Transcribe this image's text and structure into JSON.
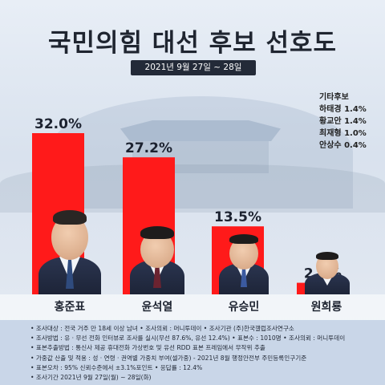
{
  "header": {
    "title": "국민의힘 대선 후보 선호도",
    "date_range": "2021년 9월 27일 ~ 28일"
  },
  "colors": {
    "bar_red": "#ff1a1a",
    "date_bar_bg": "#232a38",
    "notes_bg": "#c9d6e8"
  },
  "others_box": {
    "title": "기타후보",
    "items": [
      "하태경 1.4%",
      "황교안 1.4%",
      "최재형 1.0%",
      "안상수 0.4%"
    ]
  },
  "chart_data": {
    "type": "bar",
    "title": "국민의힘 대선 후보 선호도",
    "categories": [
      "홍준표",
      "윤석열",
      "유승민",
      "원희룡"
    ],
    "values": [
      32.0,
      27.2,
      13.5,
      2.3
    ],
    "value_labels": [
      "32.0%",
      "27.2%",
      "13.5%",
      "2.3%"
    ],
    "unit": "%",
    "ylim": [
      0,
      32.0
    ],
    "grid": false,
    "legend": "none"
  },
  "candidates": [
    {
      "name": "홍준표",
      "photo": "photo-hong-icon"
    },
    {
      "name": "윤석열",
      "photo": "photo-yoon-icon"
    },
    {
      "name": "유승민",
      "photo": "photo-yoo-icon"
    },
    {
      "name": "원희룡",
      "photo": "photo-won-icon"
    }
  ],
  "notes": [
    "• 조사대상 : 전국 거주 만 18세 이상 남녀  • 조사의뢰 : 머니투데이  • 조사기관 (주)한국갤럽조사연구소",
    "• 조사방법 : 유 · 무선 전화 인터뷰로 조사를 실시(무선 87.6%, 유선 12.4%)  • 표본수 : 1010명  • 조사의뢰 : 머니투데이",
    "• 표본추출방법 : 통신사 제공 휴대전화 가상번호 및 유선 RDD 표본 프레임에서 무작위 추출",
    "• 가중값 산출 및 적용 : 성 · 연령 · 권역별 가중치 부여(셀가중) - 2021년 8월 행정안전부 주민등록인구기준",
    "• 표본오차 : 95% 신뢰수준에서 ±3.1%포인트  • 응답률 : 12.4%",
    "• 조사기간 2021년 9월 27일(월) ~ 28일(화)"
  ]
}
